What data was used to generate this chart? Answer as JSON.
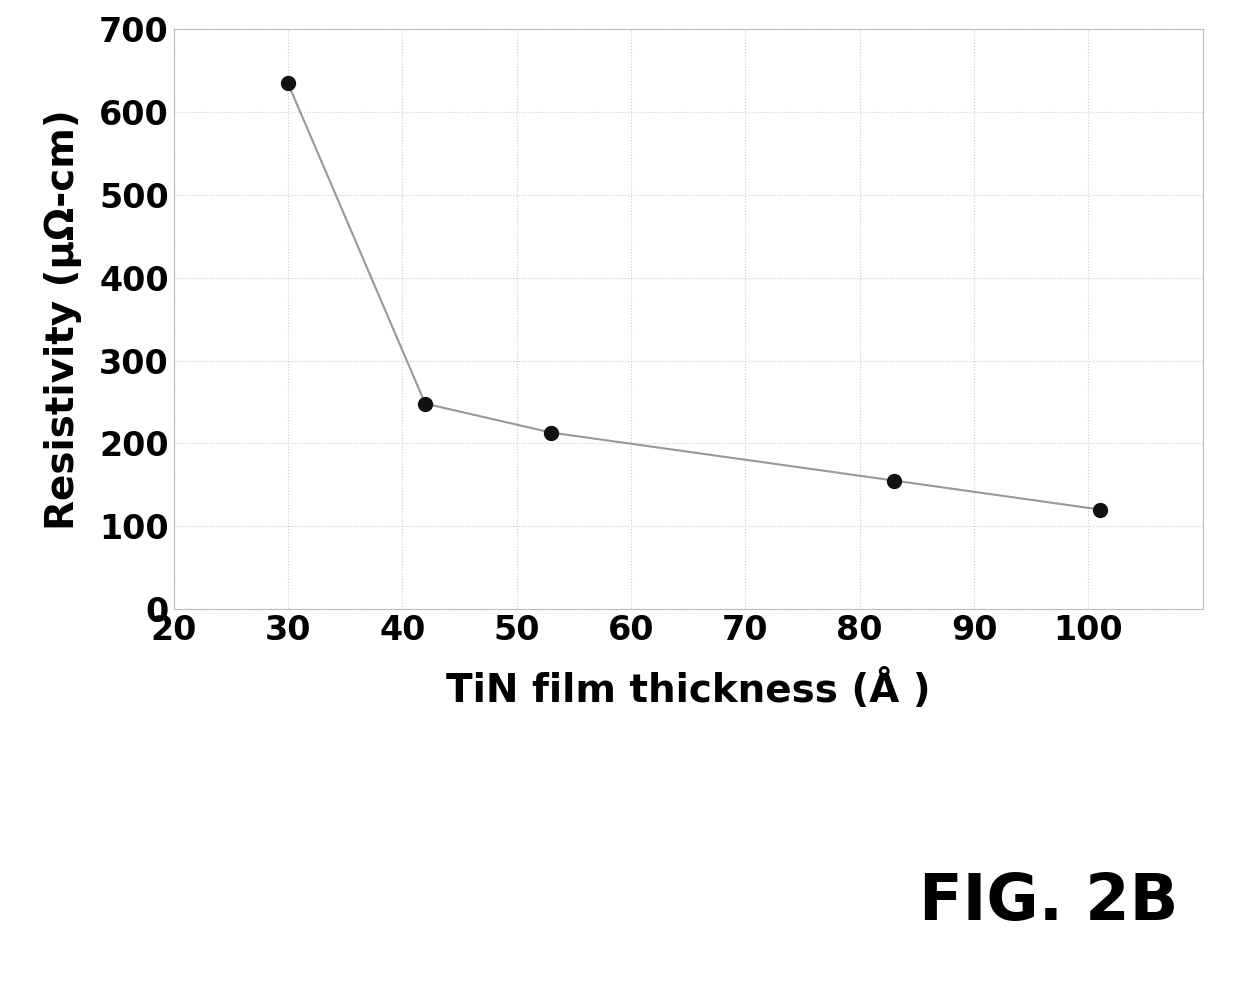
{
  "x": [
    30,
    42,
    53,
    83,
    101
  ],
  "y": [
    635,
    248,
    213,
    155,
    120
  ],
  "xlabel": "TiN film thickness (Å )",
  "ylabel": "Resistivity (μΩ-cm)",
  "xlim": [
    20,
    110
  ],
  "ylim": [
    0,
    700
  ],
  "xticks": [
    20,
    30,
    40,
    50,
    60,
    70,
    80,
    90,
    100
  ],
  "yticks": [
    0,
    100,
    200,
    300,
    400,
    500,
    600,
    700
  ],
  "fig_label": "FIG. 2B",
  "line_color": "#999999",
  "marker_color": "#111111",
  "marker_size": 10,
  "line_width": 1.5,
  "grid_color": "#cccccc",
  "background_color": "#ffffff",
  "tick_fontsize": 24,
  "label_fontsize": 28,
  "fig_label_fontsize": 46
}
